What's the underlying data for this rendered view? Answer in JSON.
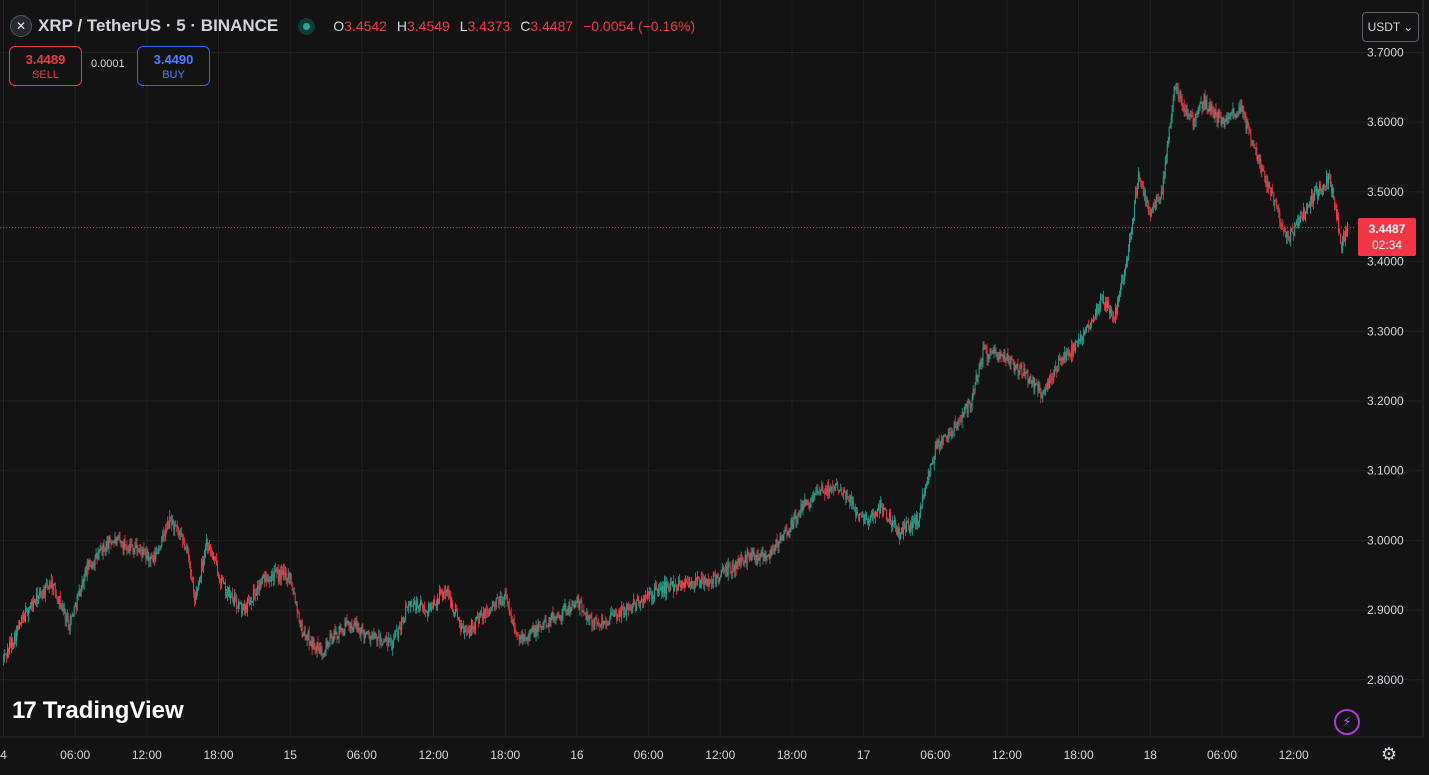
{
  "header": {
    "logo_icon": "xrp-logo-icon",
    "symbol": "XRP / TetherUS · 5 · BINANCE",
    "status_icon": "market-open-dot-icon",
    "ohlc": {
      "o_label": "O",
      "o_value": "3.4542",
      "h_label": "H",
      "h_value": "3.4549",
      "l_label": "L",
      "l_value": "3.4373",
      "c_label": "C",
      "c_value": "3.4487",
      "change": "−0.0054 (−0.16%)"
    }
  },
  "trade": {
    "sell_price": "3.4489",
    "sell_label": "SELL",
    "spread": "0.0001",
    "buy_price": "3.4490",
    "buy_label": "BUY"
  },
  "currency_button": "USDT ⌄",
  "price_tag": {
    "price": "3.4487",
    "countdown": "02:34"
  },
  "branding": {
    "mark": "17",
    "name": "TradingView"
  },
  "icons": {
    "bolt": "lightning-bolt-icon",
    "settings": "settings-gear-icon"
  },
  "colors": {
    "background": "#131313",
    "up": "#22ab94",
    "down": "#f23645",
    "grid": "#212121",
    "text": "#d1d4dc"
  },
  "chart_data": {
    "type": "candlestick",
    "title": "XRP / TetherUS · 5 · BINANCE",
    "ylim": [
      2.72,
      3.72
    ],
    "yticks": [
      "3.7000",
      "3.6000",
      "3.5000",
      "3.4000",
      "3.3000",
      "3.2000",
      "3.1000",
      "3.0000",
      "2.9000",
      "2.8000"
    ],
    "xticks": [
      {
        "label": "4",
        "h": 0
      },
      {
        "label": "06:00",
        "h": 6
      },
      {
        "label": "12:00",
        "h": 12
      },
      {
        "label": "18:00",
        "h": 18
      },
      {
        "label": "15",
        "h": 24
      },
      {
        "label": "06:00",
        "h": 30
      },
      {
        "label": "12:00",
        "h": 36
      },
      {
        "label": "18:00",
        "h": 42
      },
      {
        "label": "16",
        "h": 48
      },
      {
        "label": "06:00",
        "h": 54
      },
      {
        "label": "12:00",
        "h": 60
      },
      {
        "label": "18:00",
        "h": 66
      },
      {
        "label": "17",
        "h": 72
      },
      {
        "label": "06:00",
        "h": 78
      },
      {
        "label": "12:00",
        "h": 84
      },
      {
        "label": "18:00",
        "h": 90
      },
      {
        "label": "18",
        "h": 96
      },
      {
        "label": "06:00",
        "h": 102
      },
      {
        "label": "12:00",
        "h": 108
      }
    ],
    "xlim_hours": [
      0,
      112.5
    ],
    "last_price": 3.4487,
    "price_path": [
      [
        0,
        2.83
      ],
      [
        2,
        2.9
      ],
      [
        4,
        2.94
      ],
      [
        5.5,
        2.88
      ],
      [
        7,
        2.96
      ],
      [
        9,
        3.0
      ],
      [
        11,
        2.99
      ],
      [
        12.5,
        2.97
      ],
      [
        14,
        3.03
      ],
      [
        15.5,
        2.98
      ],
      [
        16,
        2.91
      ],
      [
        17,
        3.0
      ],
      [
        18.5,
        2.93
      ],
      [
        20,
        2.9
      ],
      [
        22,
        2.95
      ],
      [
        24,
        2.95
      ],
      [
        25,
        2.87
      ],
      [
        26.5,
        2.84
      ],
      [
        27.5,
        2.86
      ],
      [
        29,
        2.88
      ],
      [
        31,
        2.86
      ],
      [
        32.5,
        2.85
      ],
      [
        34,
        2.91
      ],
      [
        35.5,
        2.9
      ],
      [
        37,
        2.93
      ],
      [
        38.5,
        2.87
      ],
      [
        40,
        2.89
      ],
      [
        42,
        2.92
      ],
      [
        43,
        2.86
      ],
      [
        44.5,
        2.87
      ],
      [
        46,
        2.89
      ],
      [
        48,
        2.91
      ],
      [
        49.5,
        2.88
      ],
      [
        51,
        2.89
      ],
      [
        53,
        2.91
      ],
      [
        55,
        2.93
      ],
      [
        57,
        2.94
      ],
      [
        59,
        2.94
      ],
      [
        61,
        2.96
      ],
      [
        62.5,
        2.98
      ],
      [
        64,
        2.98
      ],
      [
        65.5,
        3.01
      ],
      [
        67,
        3.05
      ],
      [
        68.5,
        3.07
      ],
      [
        70,
        3.08
      ],
      [
        71.5,
        3.04
      ],
      [
        72.5,
        3.03
      ],
      [
        73.5,
        3.05
      ],
      [
        75,
        3.01
      ],
      [
        76.5,
        3.03
      ],
      [
        78,
        3.13
      ],
      [
        79.5,
        3.16
      ],
      [
        81,
        3.2
      ],
      [
        82,
        3.27
      ],
      [
        84,
        3.26
      ],
      [
        85.5,
        3.24
      ],
      [
        87,
        3.21
      ],
      [
        88.5,
        3.26
      ],
      [
        90,
        3.28
      ],
      [
        92,
        3.35
      ],
      [
        93,
        3.32
      ],
      [
        94,
        3.4
      ],
      [
        95,
        3.52
      ],
      [
        96,
        3.47
      ],
      [
        97,
        3.5
      ],
      [
        98,
        3.65
      ],
      [
        99.5,
        3.6
      ],
      [
        100.5,
        3.63
      ],
      [
        102,
        3.6
      ],
      [
        103.5,
        3.62
      ],
      [
        105,
        3.55
      ],
      [
        106.5,
        3.48
      ],
      [
        107.5,
        3.43
      ],
      [
        108.5,
        3.46
      ],
      [
        110,
        3.5
      ],
      [
        111,
        3.52
      ],
      [
        111.5,
        3.48
      ],
      [
        112,
        3.42
      ],
      [
        112.5,
        3.45
      ]
    ]
  }
}
